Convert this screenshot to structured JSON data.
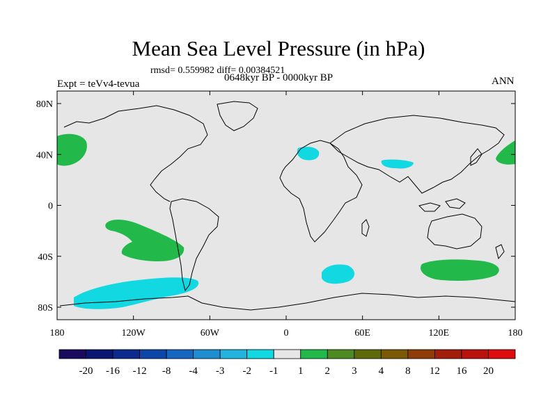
{
  "title": "Mean Sea Level Pressure (in hPa)",
  "stats": "rmsd= 0.559982 diff= 0.00384521",
  "period": "0648kyr BP - 0000kyr BP",
  "experiment": "Expt = teVv4-tevua",
  "season": "ANN",
  "axes": {
    "lon_ticks": [
      "180",
      "120W",
      "60W",
      "0",
      "60E",
      "120E",
      "180"
    ],
    "lat_ticks": [
      "80N",
      "40N",
      "0",
      "40S",
      "80S"
    ]
  },
  "colorbar": {
    "labels": [
      "-20",
      "-16",
      "-12",
      "-8",
      "-4",
      "-3",
      "-2",
      "-1",
      "1",
      "2",
      "3",
      "4",
      "8",
      "12",
      "16",
      "20"
    ],
    "colors": [
      "#1a0a5e",
      "#0a1672",
      "#0c2a8e",
      "#0c46a8",
      "#1466c0",
      "#1e8ed0",
      "#22b4de",
      "#12d8e2",
      "#e6e6e6",
      "#22b84a",
      "#4c8a22",
      "#5e6a0a",
      "#7a5a06",
      "#8e3c08",
      "#a21e0a",
      "#ba100e",
      "#dc0c10"
    ]
  },
  "palette": {
    "ocean": "#e6e6e6",
    "positive": "#22b84a",
    "negative": "#12d8e2",
    "coast": "#000000"
  }
}
